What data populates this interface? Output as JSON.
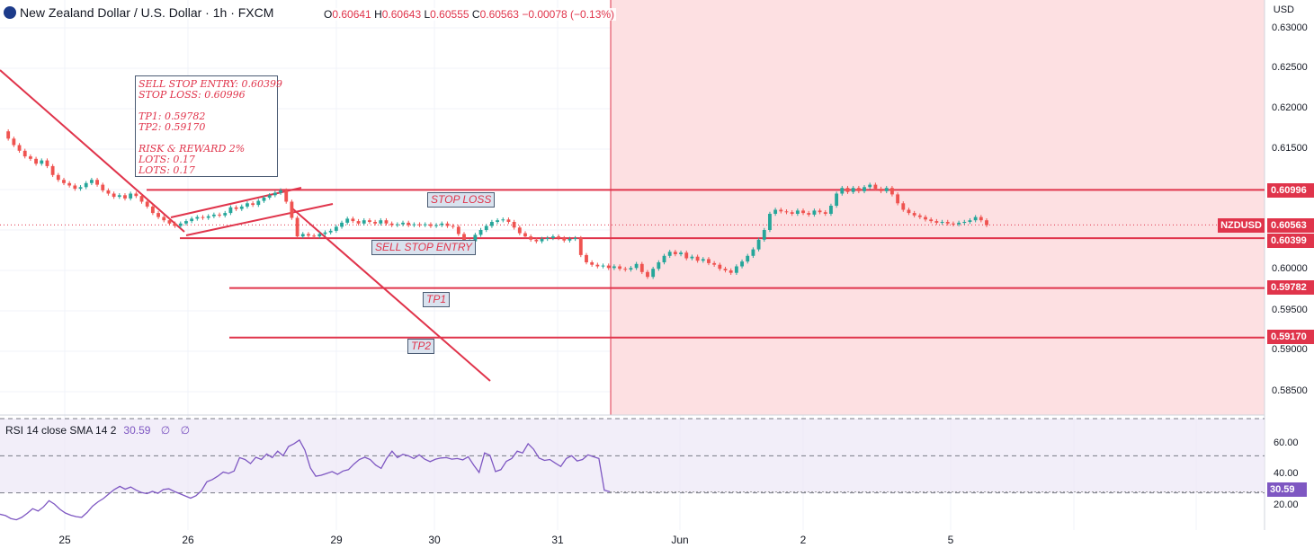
{
  "header": {
    "title": "New Zealand Dollar / U.S. Dollar · 1h · FXCM",
    "ohlc": {
      "o_label": "O",
      "o": "0.60641",
      "h_label": "H",
      "h": "0.60643",
      "l_label": "L",
      "l": "0.60555",
      "c_label": "C",
      "c": "0.60563",
      "change": "−0.00078 (−0.13%)"
    }
  },
  "annotations": {
    "note_lines": [
      "SELL STOP ENTRY: 0.60399",
      "STOP LOSS: 0.60996",
      "TP1: 0.59782",
      "TP2: 0.59170",
      "RISK & REWARD 2%",
      "LOTS: 0.17",
      "LOTS: 0.17"
    ],
    "stop_loss": "STOP LOSS",
    "sell_stop_entry": "SELL STOP ENTRY",
    "tp1": "TP1",
    "tp2": "TP2"
  },
  "price_axis": {
    "currency": "USD",
    "ticks": [
      "0.63000",
      "0.62500",
      "0.62000",
      "0.61500",
      "0.60000",
      "0.59500",
      "0.59000",
      "0.58500"
    ],
    "tags": {
      "stop_loss": "0.60996",
      "symbol": "NZDUSD",
      "last": "0.60563",
      "entry": "0.60399",
      "tp1": "0.59782",
      "tp2": "0.59170"
    }
  },
  "time_axis": {
    "labels": [
      "25",
      "26",
      "29",
      "30",
      "31",
      "Jun",
      "2",
      "5"
    ]
  },
  "rsi": {
    "legend": "RSI 14 close SMA 14 2",
    "value": "30.59",
    "extra1": "∅",
    "extra2": "∅",
    "ticks": [
      "60.00",
      "40.00",
      "20.00"
    ]
  },
  "colors": {
    "up": "#26a69a",
    "down": "#ef5350",
    "lines": "#e0344b",
    "shade": "#fde0e2",
    "rsi": "#7e57c2"
  },
  "chart_data": [
    {
      "type": "candlestick",
      "title": "New Zealand Dollar / U.S. Dollar · 1h · FXCM",
      "ylim": [
        0.5825,
        0.6317
      ],
      "x_labels": [
        "25",
        "26",
        "29",
        "30",
        "31",
        "Jun",
        "2",
        "5"
      ],
      "close_series": [
        0.6172,
        0.6163,
        0.6155,
        0.6148,
        0.6141,
        0.6138,
        0.6132,
        0.6136,
        0.6129,
        0.6118,
        0.6112,
        0.6108,
        0.6105,
        0.6101,
        0.6103,
        0.6108,
        0.6112,
        0.6106,
        0.6099,
        0.6095,
        0.6091,
        0.6093,
        0.6089,
        0.6095,
        0.6092,
        0.6085,
        0.6079,
        0.6071,
        0.6066,
        0.6062,
        0.6058,
        0.6055,
        0.6058,
        0.6061,
        0.6064,
        0.6066,
        0.6065,
        0.6067,
        0.6069,
        0.6068,
        0.6071,
        0.6078,
        0.6076,
        0.6079,
        0.6083,
        0.6081,
        0.6086,
        0.609,
        0.6093,
        0.6096,
        0.6099,
        0.6085,
        0.6065,
        0.6042,
        0.6045,
        0.6043,
        0.6042,
        0.6045,
        0.6047,
        0.6049,
        0.6054,
        0.6059,
        0.6064,
        0.6061,
        0.6058,
        0.6062,
        0.606,
        0.6058,
        0.6062,
        0.6058,
        0.6056,
        0.6057,
        0.6059,
        0.6056,
        0.6057,
        0.6056,
        0.6057,
        0.6055,
        0.6056,
        0.6058,
        0.6055,
        0.6054,
        0.6045,
        0.6034,
        0.6036,
        0.6044,
        0.605,
        0.6055,
        0.606,
        0.6062,
        0.6063,
        0.606,
        0.6053,
        0.6046,
        0.6042,
        0.6038,
        0.6036,
        0.6039,
        0.604,
        0.6042,
        0.604,
        0.6037,
        0.6039,
        0.604,
        0.6019,
        0.601,
        0.6007,
        0.6005,
        0.6006,
        0.6003,
        0.6005,
        0.6002,
        0.6001,
        0.6003,
        0.6008,
        0.5998,
        0.5992,
        0.6002,
        0.601,
        0.6018,
        0.6023,
        0.602,
        0.6022,
        0.6015,
        0.6017,
        0.6012,
        0.6014,
        0.6009,
        0.6007,
        0.6002,
        0.6,
        0.5997,
        0.6005,
        0.6011,
        0.6018,
        0.6026,
        0.6038,
        0.605,
        0.607,
        0.6075,
        0.6073,
        0.6072,
        0.607,
        0.6074,
        0.6071,
        0.6069,
        0.6074,
        0.6072,
        0.607,
        0.608,
        0.6095,
        0.6102,
        0.6097,
        0.6102,
        0.6098,
        0.6103,
        0.6106,
        0.6101,
        0.6098,
        0.6102,
        0.6094,
        0.6083,
        0.6075,
        0.6071,
        0.6068,
        0.6066,
        0.6063,
        0.6061,
        0.6059,
        0.606,
        0.6058,
        0.6057,
        0.6059,
        0.606,
        0.6062,
        0.6066,
        0.6062,
        0.6056
      ],
      "levels": [
        {
          "label": "STOP LOSS",
          "value": 0.60996
        },
        {
          "label": "SELL STOP ENTRY",
          "value": 0.60399
        },
        {
          "label": "TP1",
          "value": 0.59782
        },
        {
          "label": "TP2",
          "value": 0.5917
        }
      ],
      "last_price": 0.60563
    },
    {
      "type": "line",
      "title": "RSI 14 close SMA 14 2",
      "ylim": [
        10,
        70
      ],
      "levels": [
        70,
        50,
        30
      ],
      "values": [
        18.5,
        17.8,
        16.2,
        15.5,
        16.8,
        19.0,
        21.5,
        20.2,
        22.5,
        25.8,
        24.0,
        21.2,
        19.2,
        18.0,
        17.2,
        16.8,
        19.5,
        22.8,
        25.2,
        27.0,
        29.5,
        31.8,
        33.5,
        32.0,
        33.2,
        31.5,
        30.2,
        29.6,
        30.8,
        29.8,
        31.8,
        32.2,
        30.8,
        29.6,
        28.4,
        27.2,
        28.5,
        31.2,
        36.0,
        37.2,
        39.0,
        41.2,
        40.5,
        41.8,
        49.0,
        48.0,
        45.8,
        49.2,
        48.0,
        51.0,
        49.0,
        52.5,
        50.0,
        55.0,
        56.5,
        58.5,
        53.0,
        43.5,
        39.0,
        39.5,
        40.5,
        41.5,
        40.0,
        41.8,
        42.5,
        45.5,
        48.0,
        49.2,
        48.0,
        45.0,
        43.2,
        48.5,
        52.5,
        49.0,
        50.8,
        50.0,
        48.5,
        50.5,
        48.2,
        46.8,
        48.2,
        48.8,
        49.0,
        48.2,
        48.5,
        47.8,
        49.5,
        45.0,
        41.0,
        51.5,
        50.2,
        41.5,
        42.5,
        47.0,
        48.5,
        52.5,
        51.5,
        56.5,
        53.5,
        48.8,
        47.5,
        48.0,
        46.0,
        44.2,
        48.5,
        50.0,
        47.2,
        48.0,
        50.5,
        49.5,
        48.5,
        31.5,
        30.59
      ]
    }
  ]
}
